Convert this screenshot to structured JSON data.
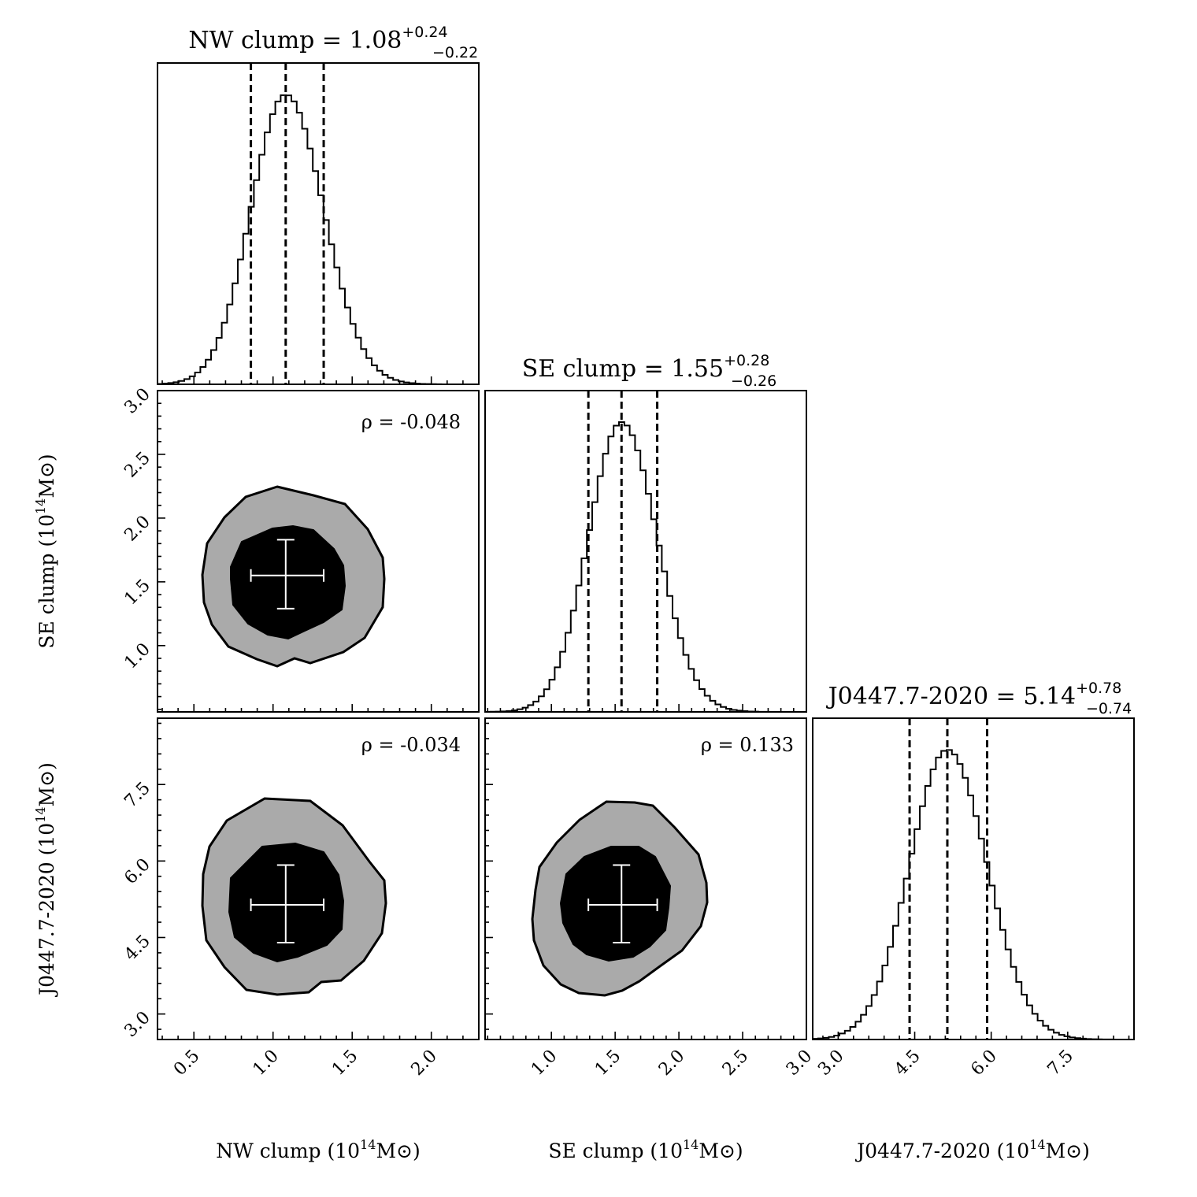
{
  "chart_data": {
    "type": "corner",
    "parameters": [
      {
        "id": "nw",
        "name": "NW clump",
        "median": 1.08,
        "plus": "+0.24",
        "minus": "−0.22",
        "quantiles": [
          0.86,
          1.08,
          1.32
        ],
        "range": [
          0.27,
          2.3
        ],
        "ticks": [
          0.5,
          1.0,
          1.5,
          2.0
        ],
        "tick_labels": [
          "0.5",
          "1.0",
          "1.5",
          "2.0"
        ],
        "xlabel": "NW clump (10",
        "unit_sup": "14",
        "unit_tail": "M⊙)"
      },
      {
        "id": "se",
        "name": "SE clump",
        "median": 1.55,
        "plus": "+0.28",
        "minus": "−0.26",
        "quantiles": [
          1.29,
          1.55,
          1.83
        ],
        "range": [
          0.48,
          3.0
        ],
        "ticks": [
          1.0,
          1.5,
          2.0,
          2.5,
          3.0
        ],
        "tick_labels": [
          "1.0",
          "1.5",
          "2.0",
          "2.5",
          "3.0"
        ],
        "xlabel": "SE clump (10",
        "unit_sup": "14",
        "unit_tail": "M⊙)"
      },
      {
        "id": "j0447",
        "name": "J0447.7-2020",
        "median": 5.14,
        "plus": "+0.78",
        "minus": "−0.74",
        "quantiles": [
          4.4,
          5.14,
          5.92
        ],
        "range": [
          2.5,
          8.8
        ],
        "ticks": [
          3.0,
          4.5,
          6.0,
          7.5
        ],
        "tick_labels": [
          "3.0",
          "4.5",
          "6.0",
          "7.5"
        ],
        "xlabel": "J0447.7-2020 (10",
        "unit_sup": "14",
        "unit_tail": "M⊙)"
      }
    ],
    "correlations": [
      {
        "row": 1,
        "col": 0,
        "label": "ρ = -0.048"
      },
      {
        "row": 2,
        "col": 0,
        "label": "ρ = -0.034"
      },
      {
        "row": 2,
        "col": 1,
        "label": "ρ = 0.133"
      }
    ],
    "contours": {
      "levels": [
        "1σ",
        "2σ"
      ],
      "inner_color": "#000000",
      "outer_color": "#aaaaaa",
      "marker_color": "#ffffff"
    }
  },
  "labels": {
    "title_nw": "NW clump = 1.08",
    "title_se": "SE clump = 1.55",
    "title_j": "J0447.7-2020 = 5.14",
    "sup_nw": "+0.24",
    "sub_nw": "−0.22",
    "sup_se": "+0.28",
    "sub_se": "−0.26",
    "sup_j": "+0.78",
    "sub_j": "−0.74",
    "rho_se_nw": "ρ = -0.048",
    "rho_j_nw": "ρ = -0.034",
    "rho_j_se": "ρ = 0.133",
    "xlabel_nw": "NW clump (10",
    "xlabel_se": "SE clump (10",
    "xlabel_j": "J0447.7-2020 (10",
    "ylabel_se": "SE clump (10",
    "ylabel_j": "J0447.7-2020 (10",
    "unit_sup": "14",
    "unit_tail": "M⊙)"
  }
}
